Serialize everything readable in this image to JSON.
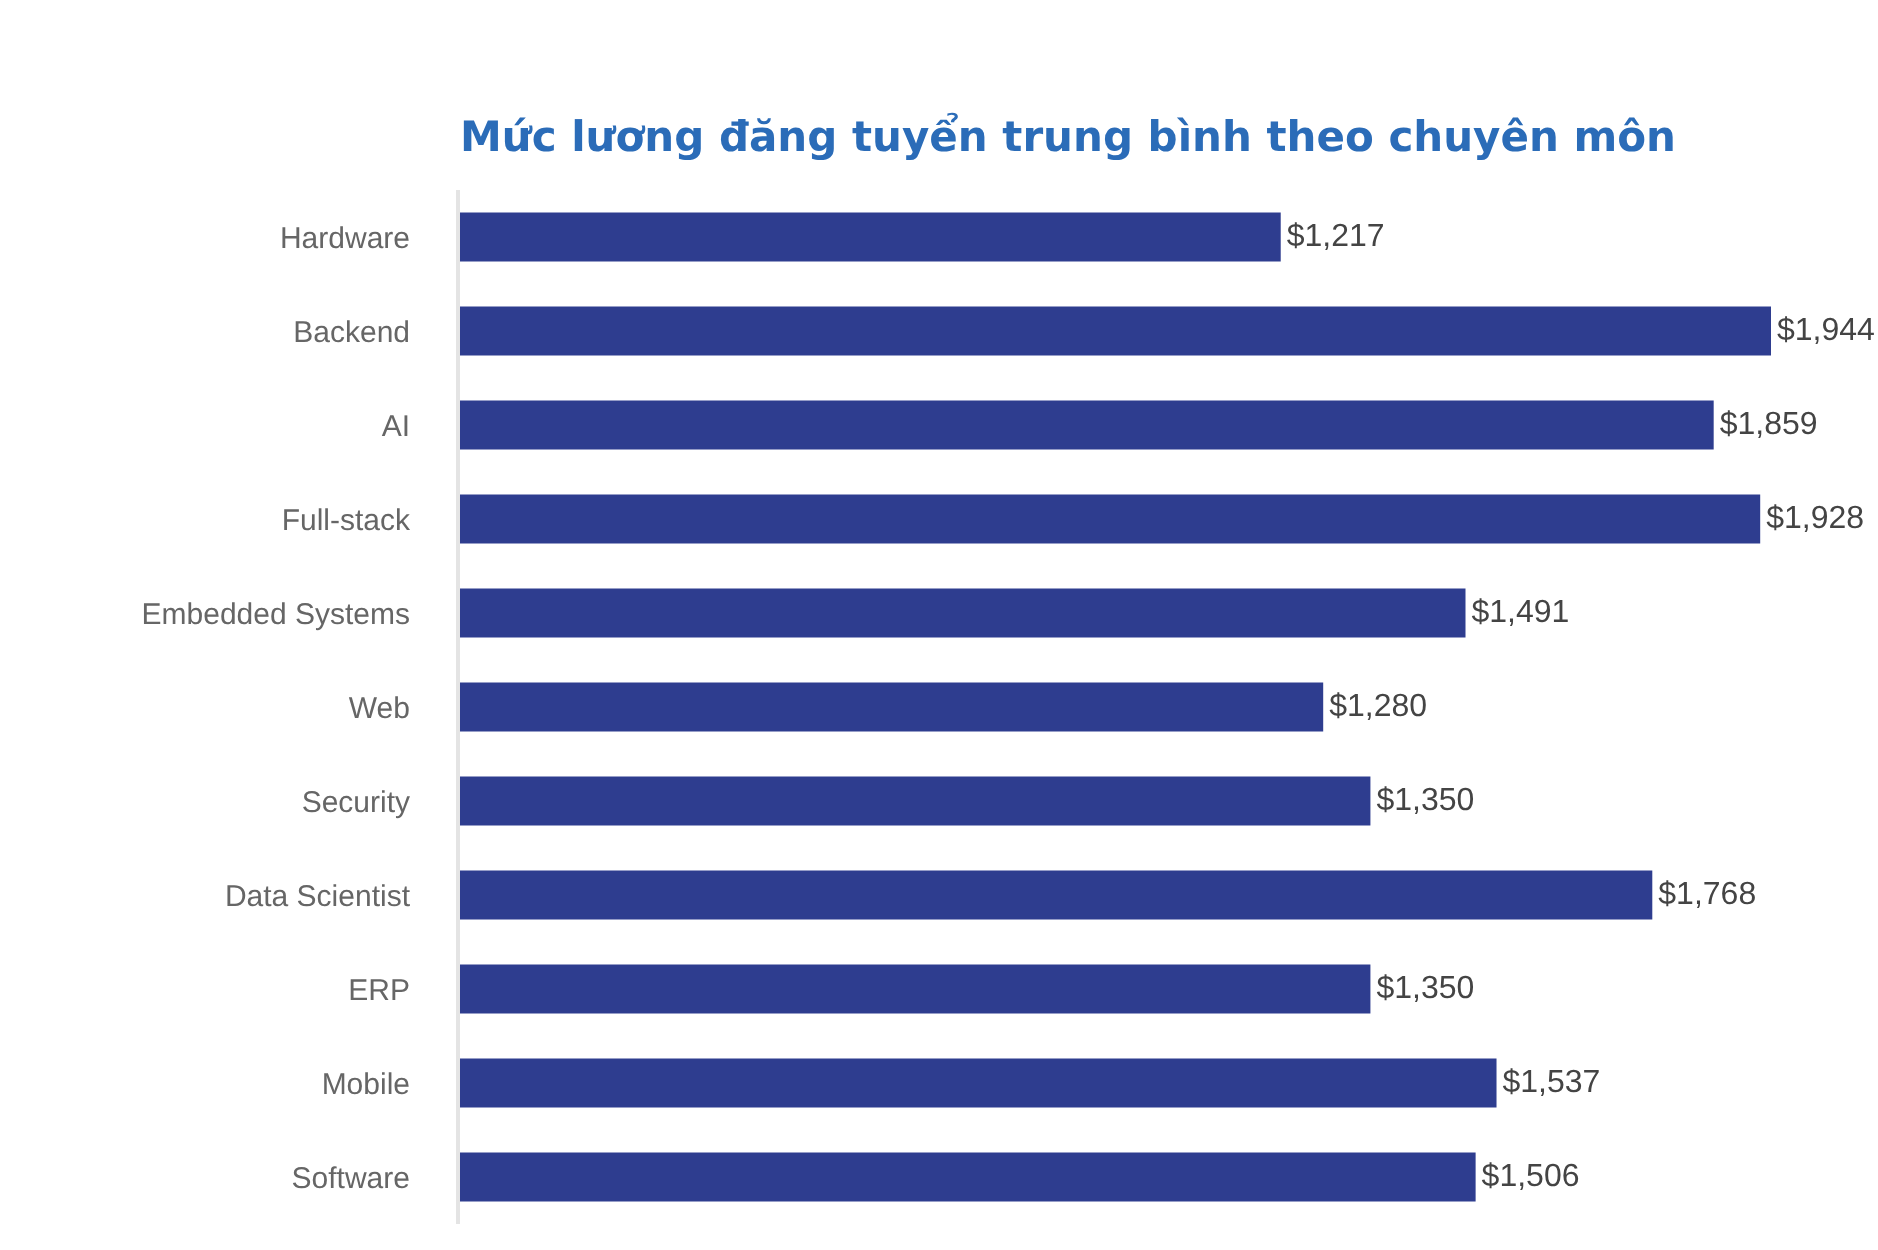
{
  "chart_data": {
    "type": "bar",
    "orientation": "horizontal",
    "title": "Mức lương đăng tuyển trung bình theo chuyên môn",
    "categories": [
      "Hardware",
      "Backend",
      "AI",
      "Full-stack",
      "Embedded Systems",
      "Web",
      "Security",
      "Data Scientist",
      "ERP",
      "Mobile",
      "Software"
    ],
    "values": [
      1217,
      1944,
      1859,
      1928,
      1491,
      1280,
      1350,
      1768,
      1350,
      1537,
      1506
    ],
    "value_labels": [
      "$1,217",
      "$1,944",
      "$1,859",
      "$1,928",
      "$1,491",
      "$1,280",
      "$1,350",
      "$1,768",
      "$1,350",
      "$1,537",
      "$1,506"
    ],
    "color": "#2e3d8f",
    "tick_labels": "y"
  }
}
